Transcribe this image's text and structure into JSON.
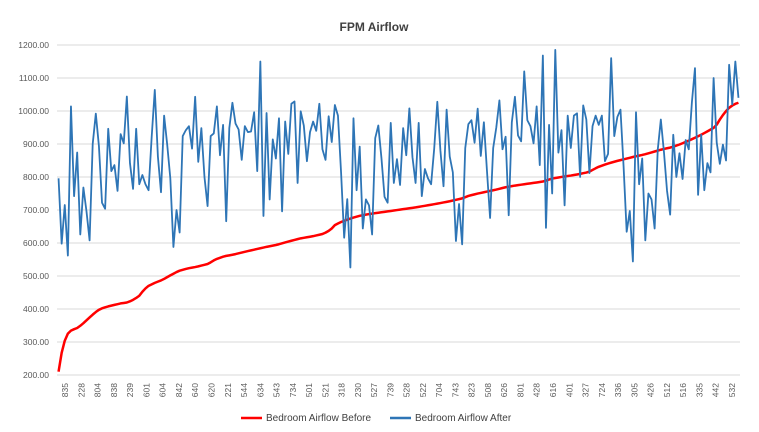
{
  "chart_data": {
    "type": "line",
    "title": "FPM Airflow",
    "xlabel": "",
    "ylabel": "",
    "ylim": [
      200,
      1200
    ],
    "yticks": [
      200,
      300,
      400,
      500,
      600,
      700,
      800,
      900,
      1000,
      1100,
      1200
    ],
    "ytick_labels": [
      "200.00",
      "300.00",
      "400.00",
      "500.00",
      "600.00",
      "700.00",
      "800.00",
      "900.00",
      "1000.00",
      "1100.00",
      "1200.00"
    ],
    "grid": true,
    "legend_position": "bottom",
    "point_count": 220,
    "x_tick_labels": [
      "835",
      "228",
      "804",
      "838",
      "239",
      "601",
      "604",
      "842",
      "640",
      "620",
      "221",
      "544",
      "634",
      "543",
      "734",
      "501",
      "521",
      "318",
      "230",
      "527",
      "739",
      "528",
      "522",
      "704",
      "743",
      "823",
      "508",
      "626",
      "801",
      "428",
      "616",
      "401",
      "327",
      "724",
      "336",
      "305",
      "426",
      "512",
      "516",
      "335",
      "442",
      "532"
    ],
    "series": [
      {
        "name": "Bedroom Airflow Before",
        "color": "#ff0000",
        "anchors": [
          [
            0,
            210
          ],
          [
            1,
            255
          ],
          [
            2,
            290
          ],
          [
            3,
            310
          ],
          [
            4,
            325
          ],
          [
            5,
            333
          ],
          [
            6,
            337
          ],
          [
            8,
            342
          ],
          [
            10,
            352
          ],
          [
            12,
            365
          ],
          [
            14,
            378
          ],
          [
            16,
            390
          ],
          [
            18,
            400
          ],
          [
            21,
            407
          ],
          [
            24,
            412
          ],
          [
            27,
            417
          ],
          [
            30,
            420
          ],
          [
            33,
            430
          ],
          [
            35,
            440
          ],
          [
            37,
            458
          ],
          [
            39,
            470
          ],
          [
            42,
            480
          ],
          [
            45,
            488
          ],
          [
            48,
            500
          ],
          [
            52,
            515
          ],
          [
            56,
            523
          ],
          [
            60,
            528
          ],
          [
            65,
            537
          ],
          [
            68,
            550
          ],
          [
            72,
            560
          ],
          [
            76,
            565
          ],
          [
            80,
            572
          ],
          [
            85,
            580
          ],
          [
            90,
            588
          ],
          [
            95,
            595
          ],
          [
            100,
            605
          ],
          [
            105,
            614
          ],
          [
            110,
            620
          ],
          [
            115,
            628
          ],
          [
            118,
            640
          ],
          [
            120,
            655
          ],
          [
            123,
            665
          ],
          [
            127,
            675
          ],
          [
            131,
            683
          ],
          [
            135,
            688
          ],
          [
            140,
            693
          ],
          [
            145,
            698
          ],
          [
            150,
            703
          ],
          [
            155,
            708
          ],
          [
            160,
            714
          ],
          [
            165,
            720
          ],
          [
            170,
            727
          ],
          [
            175,
            735
          ],
          [
            178,
            743
          ],
          [
            182,
            750
          ],
          [
            186,
            756
          ],
          [
            190,
            762
          ],
          [
            194,
            769
          ],
          [
            198,
            774
          ],
          [
            202,
            778
          ],
          [
            206,
            782
          ],
          [
            210,
            786
          ],
          [
            214,
            795
          ],
          [
            218,
            800
          ],
          [
            222,
            804
          ],
          [
            226,
            809
          ],
          [
            230,
            815
          ],
          [
            234,
            830
          ],
          [
            238,
            840
          ],
          [
            242,
            848
          ],
          [
            246,
            855
          ],
          [
            250,
            862
          ],
          [
            254,
            868
          ],
          [
            258,
            876
          ],
          [
            262,
            884
          ],
          [
            266,
            890
          ],
          [
            270,
            900
          ],
          [
            274,
            912
          ],
          [
            278,
            925
          ],
          [
            282,
            940
          ],
          [
            285,
            952
          ],
          [
            287,
            975
          ],
          [
            289,
            995
          ],
          [
            291,
            1010
          ],
          [
            293,
            1020
          ],
          [
            295,
            1025
          ]
        ]
      },
      {
        "name": "Bedroom Airflow After",
        "color": "#2e75b6",
        "anchors": [
          [
            0,
            820
          ],
          [
            1,
            610
          ],
          [
            2,
            715
          ],
          [
            3,
            550
          ],
          [
            4,
            990
          ],
          [
            5,
            760
          ],
          [
            6,
            880
          ],
          [
            7,
            620
          ],
          [
            8,
            750
          ],
          [
            9,
            720
          ],
          [
            10,
            620
          ],
          [
            11,
            900
          ],
          [
            12,
            980
          ],
          [
            13,
            870
          ],
          [
            14,
            740
          ],
          [
            15,
            710
          ],
          [
            16,
            940
          ],
          [
            17,
            800
          ],
          [
            18,
            860
          ],
          [
            19,
            770
          ],
          [
            20,
            930
          ],
          [
            21,
            890
          ],
          [
            22,
            1020
          ],
          [
            23,
            860
          ],
          [
            24,
            770
          ],
          [
            25,
            940
          ],
          [
            26,
            760
          ],
          [
            27,
            830
          ],
          [
            28,
            790
          ],
          [
            29,
            760
          ],
          [
            30,
            910
          ],
          [
            31,
            1040
          ],
          [
            32,
            880
          ],
          [
            33,
            760
          ],
          [
            34,
            980
          ],
          [
            35,
            880
          ],
          [
            36,
            820
          ],
          [
            37,
            600
          ],
          [
            38,
            700
          ],
          [
            39,
            620
          ],
          [
            40,
            900
          ],
          [
            41,
            960
          ],
          [
            42,
            960
          ],
          [
            43,
            880
          ],
          [
            44,
            1025
          ],
          [
            45,
            870
          ],
          [
            46,
            960
          ],
          [
            47,
            800
          ],
          [
            48,
            700
          ],
          [
            49,
            900
          ],
          [
            50,
            950
          ],
          [
            51,
            1020
          ],
          [
            52,
            860
          ],
          [
            53,
            940
          ],
          [
            54,
            690
          ],
          [
            55,
            960
          ],
          [
            56,
            1025
          ],
          [
            57,
            950
          ],
          [
            58,
            920
          ],
          [
            59,
            870
          ],
          [
            60,
            960
          ],
          [
            61,
            930
          ],
          [
            62,
            920
          ],
          [
            63,
            1020
          ],
          [
            64,
            830
          ],
          [
            65,
            1150
          ],
          [
            66,
            670
          ],
          [
            67,
            970
          ],
          [
            68,
            750
          ],
          [
            69,
            920
          ],
          [
            70,
            850
          ],
          [
            71,
            960
          ],
          [
            72,
            720
          ],
          [
            73,
            980
          ],
          [
            74,
            870
          ],
          [
            75,
            1010
          ],
          [
            76,
            1005
          ],
          [
            77,
            800
          ],
          [
            78,
            1005
          ],
          [
            79,
            950
          ],
          [
            80,
            830
          ],
          [
            81,
            960
          ],
          [
            82,
            980
          ],
          [
            83,
            940
          ],
          [
            84,
            1010
          ],
          [
            85,
            860
          ],
          [
            86,
            870
          ],
          [
            87,
            990
          ],
          [
            88,
            900
          ],
          [
            89,
            1000
          ],
          [
            90,
            1010
          ]
        ]
      }
    ]
  }
}
